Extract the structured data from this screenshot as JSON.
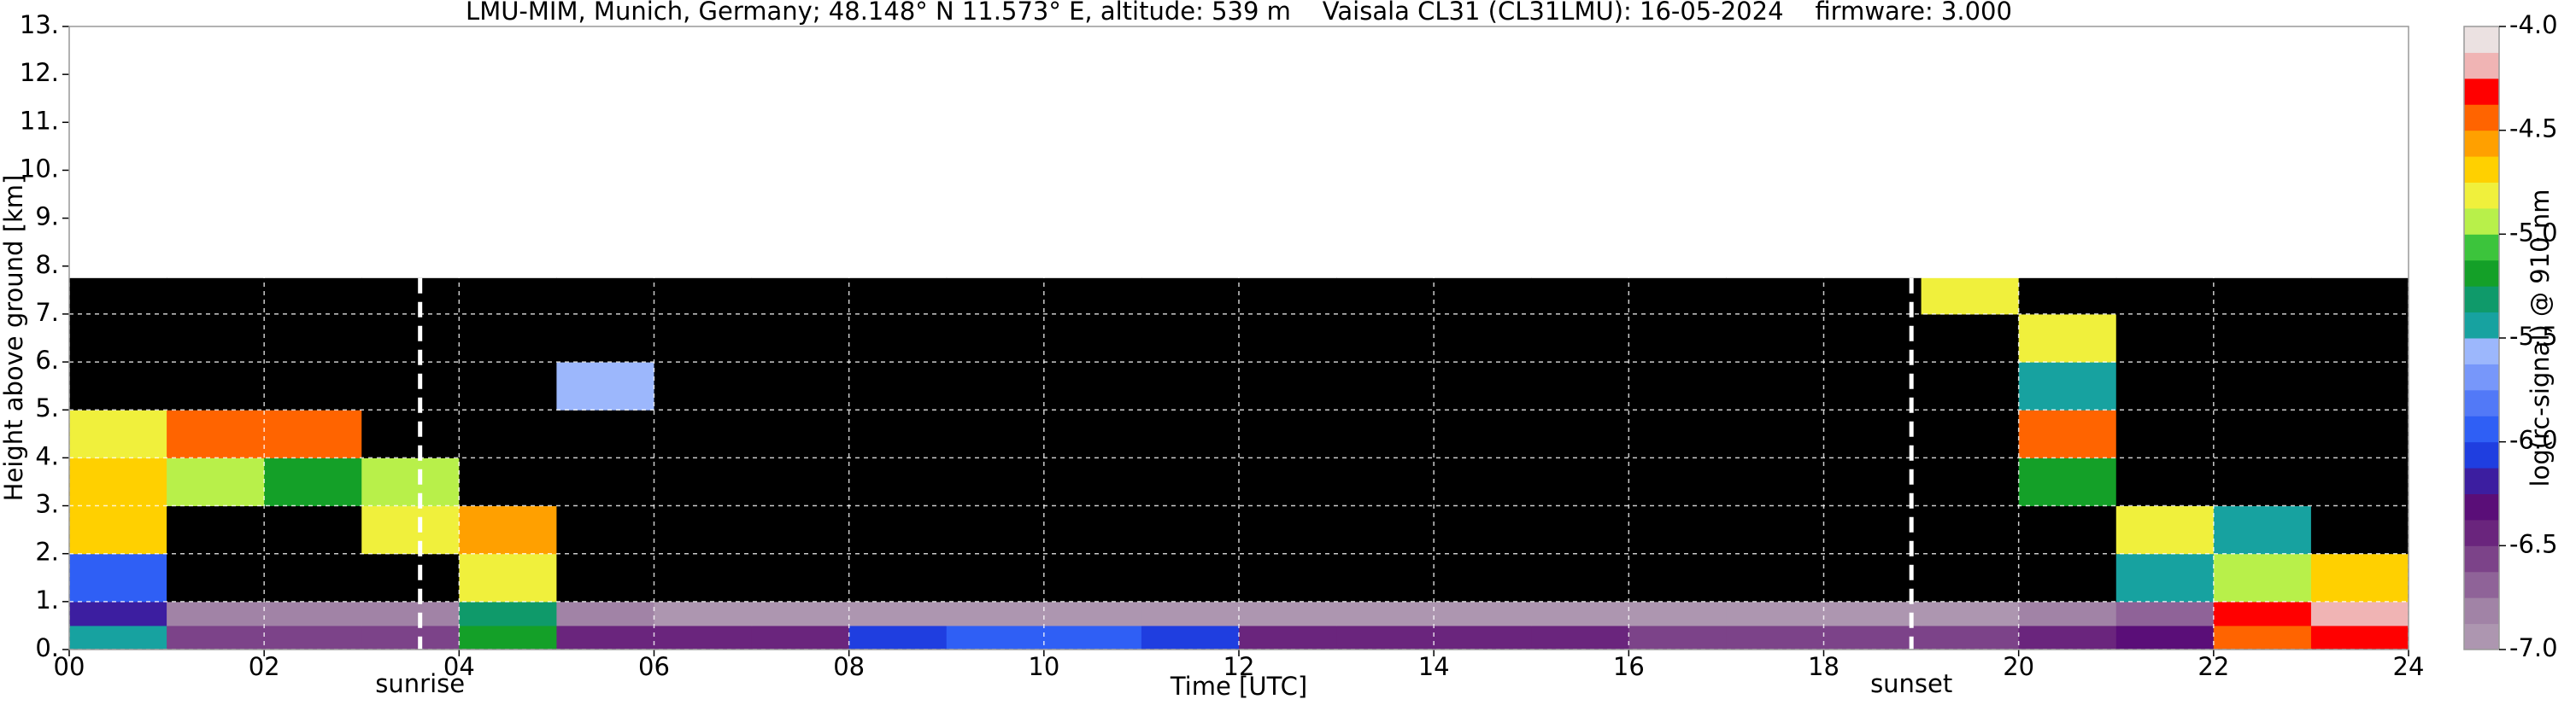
{
  "chart_data": {
    "type": "heatmap",
    "title": "LMU-MIM, Munich, Germany; 48.148° N 11.573° E, altitude: 539 m    Vaisala CL31 (CL31LMU): 16-05-2024    firmware: 3.000",
    "xlabel": "Time [UTC]",
    "ylabel": "Height above ground [km]",
    "xlim": [
      0,
      24
    ],
    "ylim": [
      0,
      13
    ],
    "xticks": [
      {
        "value": 0,
        "label": "00"
      },
      {
        "value": 2,
        "label": "02"
      },
      {
        "value": 4,
        "label": "04"
      },
      {
        "value": 6,
        "label": "06"
      },
      {
        "value": 8,
        "label": "08"
      },
      {
        "value": 10,
        "label": "10"
      },
      {
        "value": 12,
        "label": "12"
      },
      {
        "value": 14,
        "label": "14"
      },
      {
        "value": 16,
        "label": "16"
      },
      {
        "value": 18,
        "label": "18"
      },
      {
        "value": 20,
        "label": "20"
      },
      {
        "value": 22,
        "label": "22"
      },
      {
        "value": 24,
        "label": "24"
      }
    ],
    "yticks": [
      {
        "value": 0,
        "label": "0."
      },
      {
        "value": 1,
        "label": "1."
      },
      {
        "value": 2,
        "label": "2."
      },
      {
        "value": 3,
        "label": "3."
      },
      {
        "value": 4,
        "label": "4."
      },
      {
        "value": 5,
        "label": "5."
      },
      {
        "value": 6,
        "label": "6."
      },
      {
        "value": 7,
        "label": "7."
      },
      {
        "value": 8,
        "label": "8."
      },
      {
        "value": 9,
        "label": "9."
      },
      {
        "value": 10,
        "label": "10."
      },
      {
        "value": 11,
        "label": "11."
      },
      {
        "value": 12,
        "label": "12."
      },
      {
        "value": 13,
        "label": "13."
      }
    ],
    "grid": true,
    "annotations": [
      {
        "text": "sunrise",
        "x": 3.6
      },
      {
        "text": "sunset",
        "x": 18.9
      }
    ],
    "x_edges": [
      0,
      1,
      2,
      3,
      4,
      5,
      6,
      7,
      8,
      9,
      10,
      11,
      12,
      13,
      14,
      15,
      16,
      17,
      18,
      19,
      20,
      21,
      22,
      23,
      24
    ],
    "y_edges": [
      0,
      0.5,
      1,
      2,
      3,
      4,
      5,
      6,
      7,
      7.75
    ],
    "z": [
      [
        -5.5,
        -6.6,
        -6.6,
        -6.6,
        -5.2,
        -6.5,
        -6.4,
        -6.4,
        -6.1,
        -6.0,
        -6.0,
        -6.1,
        -6.4,
        -6.5,
        -6.5,
        -6.5,
        -6.6,
        -6.6,
        -6.6,
        -6.6,
        -6.5,
        -6.3,
        -4.4,
        -4.3
      ],
      [
        -6.2,
        -6.8,
        -6.8,
        -6.8,
        -5.3,
        -6.8,
        -6.9,
        -6.9,
        -6.9,
        -6.9,
        -6.9,
        -6.9,
        -6.9,
        -6.9,
        -6.9,
        -6.9,
        -6.9,
        -6.9,
        -6.9,
        -6.9,
        -6.8,
        -6.7,
        -4.3,
        -4.2
      ],
      [
        -6.0,
        -7.5,
        -7.5,
        -7.5,
        -4.8,
        -7.5,
        -7.5,
        -7.5,
        -7.5,
        -7.5,
        -7.5,
        -7.5,
        -7.5,
        -7.5,
        -7.5,
        -7.5,
        -7.5,
        -7.5,
        -7.5,
        -7.5,
        -7.5,
        -5.5,
        -4.9,
        -4.7
      ],
      [
        -4.7,
        -7.5,
        -7.5,
        -4.8,
        -4.6,
        -7.5,
        -7.5,
        -7.5,
        -7.5,
        -7.5,
        -7.5,
        -7.5,
        -7.5,
        -7.5,
        -7.5,
        -7.5,
        -7.5,
        -7.5,
        -7.5,
        -7.5,
        -7.5,
        -4.8,
        -5.5,
        -7.5
      ],
      [
        -4.7,
        -4.9,
        -5.2,
        -4.9,
        -7.5,
        -7.5,
        -7.5,
        -7.5,
        -7.5,
        -7.5,
        -7.5,
        -7.5,
        -7.5,
        -7.5,
        -7.5,
        -7.5,
        -7.5,
        -7.5,
        -7.5,
        -7.5,
        -5.2,
        -7.5,
        -7.5,
        -7.5
      ],
      [
        -4.8,
        -4.4,
        -4.5,
        -7.5,
        -7.5,
        -7.5,
        -7.5,
        -7.5,
        -7.5,
        -7.5,
        -7.5,
        -7.5,
        -7.5,
        -7.5,
        -7.5,
        -7.5,
        -7.5,
        -7.5,
        -7.5,
        -7.5,
        -4.4,
        -7.5,
        -7.5,
        -7.5
      ],
      [
        -7.5,
        -7.5,
        -7.5,
        -7.5,
        -7.5,
        -5.6,
        -7.5,
        -7.5,
        -7.5,
        -7.5,
        -7.5,
        -7.5,
        -7.5,
        -7.5,
        -7.5,
        -7.5,
        -7.5,
        -7.5,
        -7.5,
        -7.5,
        -5.5,
        -7.5,
        -7.5,
        -7.5
      ],
      [
        -7.5,
        -7.5,
        -7.5,
        -7.5,
        -7.5,
        -7.5,
        -7.5,
        -7.5,
        -7.5,
        -7.5,
        -7.5,
        -7.5,
        -7.5,
        -7.5,
        -7.5,
        -7.5,
        -7.5,
        -7.5,
        -7.5,
        -7.5,
        -4.8,
        -7.5,
        -7.5,
        -7.5
      ],
      [
        -7.5,
        -7.5,
        -7.5,
        -7.5,
        -7.5,
        -7.5,
        -7.5,
        -7.5,
        -7.5,
        -7.5,
        -7.5,
        -7.5,
        -7.5,
        -7.5,
        -7.5,
        -7.5,
        -7.5,
        -7.5,
        -7.5,
        -4.8,
        -7.5,
        -7.5,
        -7.5,
        -7.5
      ]
    ],
    "under_color": "#000000",
    "colorbar": {
      "label": "log(rc-signal) @ 910 nm",
      "zlim": [
        -7,
        -4
      ],
      "ticks": [
        {
          "value": -7,
          "label": "-7.0"
        },
        {
          "value": -6.5,
          "label": "-6.5"
        },
        {
          "value": -6,
          "label": "-6.0"
        },
        {
          "value": -5.5,
          "label": "-5.5"
        },
        {
          "value": -5,
          "label": "-5.0"
        },
        {
          "value": -4.5,
          "label": "-4.5"
        },
        {
          "value": -4,
          "label": "-4.0"
        }
      ],
      "colors": [
        "#ad96b0",
        "#a183a6",
        "#8f6398",
        "#7c4389",
        "#6a257d",
        "#5a0e78",
        "#3c1ea0",
        "#1f3ee0",
        "#2f5ff5",
        "#5279f7",
        "#7797fa",
        "#9cb7fc",
        "#17a2a0",
        "#0f9a6a",
        "#14a028",
        "#3cc43c",
        "#b8f04a",
        "#f0f03c",
        "#ffd000",
        "#ffa000",
        "#ff6400",
        "#ff0000",
        "#f0b4b4",
        "#ebe1e1"
      ]
    }
  }
}
